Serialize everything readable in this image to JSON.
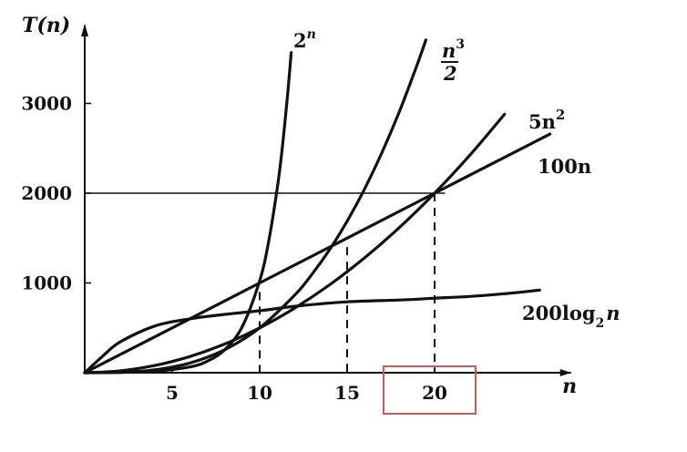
{
  "chart_data": {
    "type": "line",
    "title": "",
    "xlabel": "n",
    "ylabel": "T(n)",
    "xlim": [
      0,
      28
    ],
    "ylim": [
      0,
      3800
    ],
    "x_ticks": [
      "5",
      "10",
      "15",
      "20"
    ],
    "y_ticks": [
      "1000",
      "2000",
      "3000"
    ],
    "reference_lines": [
      {
        "type": "horizontal",
        "y": 2000
      },
      {
        "type": "vertical-dashed",
        "x": 10
      },
      {
        "type": "vertical-dashed",
        "x": 15
      },
      {
        "type": "vertical-dashed",
        "x": 20
      }
    ],
    "highlight_tick": "20",
    "series": [
      {
        "name": "2^n",
        "label_main": "2",
        "label_sup": "n",
        "points": [
          [
            0,
            1
          ],
          [
            2,
            4
          ],
          [
            4,
            16
          ],
          [
            6,
            64
          ],
          [
            7,
            128
          ],
          [
            8,
            256
          ],
          [
            9,
            512
          ],
          [
            10,
            1024
          ],
          [
            10.5,
            1448
          ],
          [
            11,
            2048
          ],
          [
            11.3,
            2521
          ],
          [
            11.6,
            3104
          ],
          [
            11.8,
            3566
          ]
        ]
      },
      {
        "name": "n^3/2",
        "label_num": "n",
        "label_sup": "3",
        "label_den": "2",
        "points": [
          [
            0,
            0
          ],
          [
            2,
            4
          ],
          [
            4,
            32
          ],
          [
            6,
            108
          ],
          [
            8,
            256
          ],
          [
            10,
            500
          ],
          [
            12,
            864
          ],
          [
            13,
            1099
          ],
          [
            14,
            1372
          ],
          [
            15,
            1688
          ],
          [
            16,
            2048
          ],
          [
            17,
            2457
          ],
          [
            18,
            2916
          ],
          [
            19,
            3430
          ],
          [
            19.5,
            3707
          ]
        ]
      },
      {
        "name": "5n^2",
        "label_main": "5n",
        "label_sup": "2",
        "points": [
          [
            0,
            0
          ],
          [
            2,
            20
          ],
          [
            4,
            80
          ],
          [
            6,
            180
          ],
          [
            8,
            320
          ],
          [
            10,
            500
          ],
          [
            12,
            720
          ],
          [
            14,
            980
          ],
          [
            16,
            1280
          ],
          [
            18,
            1620
          ],
          [
            20,
            2000
          ],
          [
            22,
            2420
          ],
          [
            24,
            2880
          ]
        ]
      },
      {
        "name": "100n",
        "label_main": "100n",
        "points": [
          [
            0,
            0
          ],
          [
            5,
            500
          ],
          [
            10,
            1000
          ],
          [
            15,
            1500
          ],
          [
            20,
            2000
          ],
          [
            25,
            2500
          ],
          [
            26.6,
            2660
          ]
        ]
      },
      {
        "name": "200log_2 n",
        "label_main": "200log",
        "label_sub": "2",
        "label_tail": "n",
        "points": [
          [
            0,
            0
          ],
          [
            1,
            180
          ],
          [
            2,
            340
          ],
          [
            4,
            520
          ],
          [
            6,
            600
          ],
          [
            8,
            650
          ],
          [
            10,
            690
          ],
          [
            12,
            740
          ],
          [
            15,
            790
          ],
          [
            18,
            810
          ],
          [
            20,
            830
          ],
          [
            22,
            850
          ],
          [
            24,
            880
          ],
          [
            26,
            920
          ]
        ]
      }
    ]
  }
}
